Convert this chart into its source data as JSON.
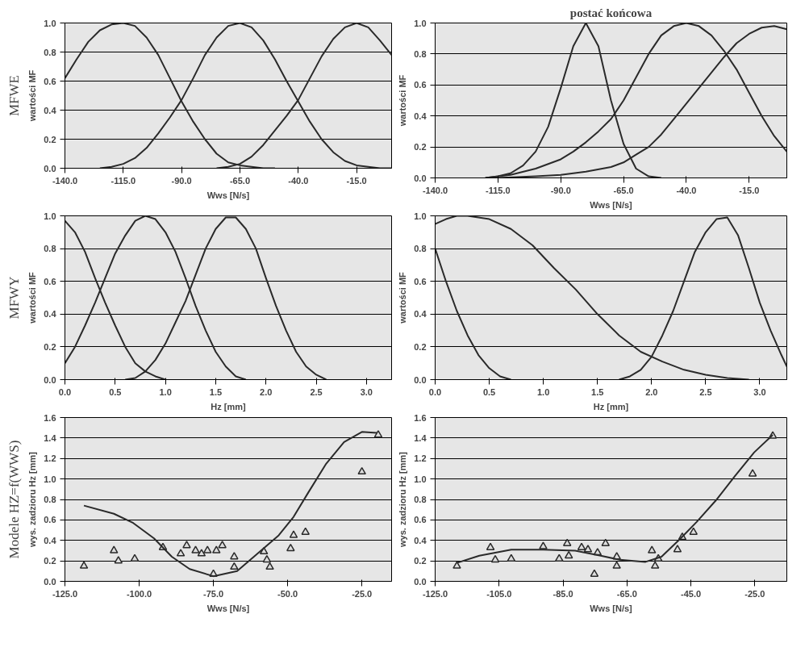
{
  "chart_data": [
    {
      "type": "line",
      "annotations": [
        "MFWE"
      ],
      "xlabel": "Wws [N/s]",
      "ylabel": "wartości MF",
      "grid": "y",
      "marker": "none",
      "line_style": "solid",
      "xlim": [
        -140,
        0
      ],
      "xticks": [
        {
          "value": -140,
          "label": "-140.0"
        },
        {
          "value": -115,
          "label": "-115.0"
        },
        {
          "value": -90,
          "label": "-90.0"
        },
        {
          "value": -65,
          "label": "-65.0"
        },
        {
          "value": -40,
          "label": "-40.0"
        },
        {
          "value": -15,
          "label": "-15.0"
        }
      ],
      "ylim": [
        0,
        1
      ],
      "yticks": [
        {
          "value": 0,
          "label": "0.0"
        },
        {
          "value": 0.2,
          "label": "0.2"
        },
        {
          "value": 0.4,
          "label": "0.4"
        },
        {
          "value": 0.6,
          "label": "0.6"
        },
        {
          "value": 0.8,
          "label": "0.8"
        },
        {
          "value": 1,
          "label": "1.0"
        }
      ],
      "series": [
        {
          "color": "#2a2a2a",
          "x": [
            -140,
            -135,
            -130,
            -125,
            -120,
            -115,
            -110,
            -105,
            -100,
            -95,
            -90,
            -85,
            -80,
            -75,
            -70,
            -65,
            -60,
            -55,
            -50
          ],
          "values": [
            0.62,
            0.75,
            0.87,
            0.95,
            0.99,
            1.0,
            0.98,
            0.9,
            0.78,
            0.62,
            0.46,
            0.32,
            0.2,
            0.1,
            0.04,
            0.02,
            0.01,
            0.0,
            0.0
          ]
        },
        {
          "color": "#2a2a2a",
          "x": [
            -125,
            -120,
            -115,
            -110,
            -105,
            -100,
            -95,
            -90,
            -85,
            -80,
            -75,
            -70,
            -65,
            -60,
            -55,
            -50,
            -45,
            -40,
            -35,
            -30,
            -25,
            -20,
            -15,
            -10,
            -5,
            0
          ],
          "values": [
            0.0,
            0.01,
            0.03,
            0.07,
            0.14,
            0.24,
            0.35,
            0.47,
            0.62,
            0.78,
            0.9,
            0.98,
            1.0,
            0.97,
            0.88,
            0.75,
            0.6,
            0.46,
            0.32,
            0.2,
            0.11,
            0.05,
            0.02,
            0.01,
            0.0,
            0.0
          ]
        },
        {
          "color": "#2a2a2a",
          "x": [
            -75,
            -70,
            -65,
            -60,
            -55,
            -50,
            -45,
            -40,
            -35,
            -30,
            -25,
            -20,
            -15,
            -10,
            -5,
            0
          ],
          "values": [
            0.0,
            0.01,
            0.03,
            0.08,
            0.16,
            0.26,
            0.36,
            0.47,
            0.62,
            0.77,
            0.89,
            0.97,
            1.0,
            0.97,
            0.88,
            0.78
          ]
        }
      ]
    },
    {
      "type": "line",
      "title": "postać końcowa",
      "xlabel": "Wws [N/s]",
      "ylabel": "wartości MF",
      "grid": "y",
      "marker": "none",
      "line_style": "solid",
      "xlim": [
        -140,
        0
      ],
      "xticks": [
        {
          "value": -140,
          "label": "-140.0"
        },
        {
          "value": -115,
          "label": "-115.0"
        },
        {
          "value": -90,
          "label": "-90.0"
        },
        {
          "value": -65,
          "label": "-65.0"
        },
        {
          "value": -40,
          "label": "-40.0"
        },
        {
          "value": -15,
          "label": "-15.0"
        }
      ],
      "ylim": [
        0,
        1
      ],
      "yticks": [
        {
          "value": 0,
          "label": "0.0"
        },
        {
          "value": 0.2,
          "label": "0.2"
        },
        {
          "value": 0.4,
          "label": "0.4"
        },
        {
          "value": 0.6,
          "label": "0.6"
        },
        {
          "value": 0.8,
          "label": "0.8"
        },
        {
          "value": 1,
          "label": "1.0"
        }
      ],
      "series": [
        {
          "color": "#2a2a2a",
          "x": [
            -120,
            -115,
            -110,
            -105,
            -100,
            -95,
            -90,
            -85,
            -80,
            -75,
            -70,
            -65,
            -60,
            -55,
            -50
          ],
          "values": [
            0.0,
            0.01,
            0.03,
            0.08,
            0.17,
            0.33,
            0.58,
            0.85,
            1.0,
            0.85,
            0.5,
            0.22,
            0.06,
            0.01,
            0.0
          ]
        },
        {
          "color": "#2a2a2a",
          "x": [
            -120,
            -110,
            -100,
            -90,
            -85,
            -80,
            -75,
            -70,
            -65,
            -60,
            -55,
            -50,
            -45,
            -40,
            -35,
            -30,
            -25,
            -20,
            -15,
            -10,
            -5,
            0
          ],
          "values": [
            0.0,
            0.02,
            0.06,
            0.12,
            0.17,
            0.23,
            0.3,
            0.38,
            0.5,
            0.65,
            0.8,
            0.92,
            0.98,
            1.0,
            0.98,
            0.92,
            0.82,
            0.7,
            0.55,
            0.4,
            0.27,
            0.17
          ]
        },
        {
          "color": "#2a2a2a",
          "x": [
            -115,
            -100,
            -90,
            -80,
            -70,
            -65,
            -60,
            -55,
            -50,
            -45,
            -40,
            -35,
            -30,
            -25,
            -20,
            -15,
            -10,
            -5,
            0
          ],
          "values": [
            0.0,
            0.01,
            0.02,
            0.04,
            0.07,
            0.1,
            0.15,
            0.2,
            0.28,
            0.38,
            0.48,
            0.58,
            0.68,
            0.78,
            0.87,
            0.93,
            0.97,
            0.98,
            0.96
          ]
        }
      ]
    },
    {
      "type": "line",
      "annotations": [
        "MFWY"
      ],
      "xlabel": "Hz [mm]",
      "ylabel": "wartości MF",
      "grid": "y",
      "marker": "none",
      "line_style": "solid",
      "xlim": [
        0,
        3.25
      ],
      "xticks": [
        {
          "value": 0,
          "label": "0.0"
        },
        {
          "value": 0.5,
          "label": "0.5"
        },
        {
          "value": 1,
          "label": "1.0"
        },
        {
          "value": 1.5,
          "label": "1.5"
        },
        {
          "value": 2,
          "label": "2.0"
        },
        {
          "value": 2.5,
          "label": "2.5"
        },
        {
          "value": 3,
          "label": "3.0"
        }
      ],
      "ylim": [
        0,
        1
      ],
      "yticks": [
        {
          "value": 0,
          "label": "0.0"
        },
        {
          "value": 0.2,
          "label": "0.2"
        },
        {
          "value": 0.4,
          "label": "0.4"
        },
        {
          "value": 0.6,
          "label": "0.6"
        },
        {
          "value": 0.8,
          "label": "0.8"
        },
        {
          "value": 1,
          "label": "1.0"
        }
      ],
      "series": [
        {
          "color": "#2a2a2a",
          "x": [
            0,
            0.1,
            0.2,
            0.3,
            0.4,
            0.5,
            0.6,
            0.7,
            0.8,
            0.9,
            1.0
          ],
          "values": [
            0.97,
            0.9,
            0.78,
            0.62,
            0.47,
            0.33,
            0.2,
            0.1,
            0.05,
            0.02,
            0.0
          ]
        },
        {
          "color": "#2a2a2a",
          "x": [
            0,
            0.1,
            0.2,
            0.3,
            0.4,
            0.5,
            0.6,
            0.7,
            0.8,
            0.9,
            1.0,
            1.1,
            1.2,
            1.3,
            1.4,
            1.5,
            1.6,
            1.7,
            1.8
          ],
          "values": [
            0.1,
            0.2,
            0.33,
            0.47,
            0.62,
            0.77,
            0.88,
            0.97,
            1.0,
            0.98,
            0.9,
            0.78,
            0.62,
            0.45,
            0.3,
            0.17,
            0.08,
            0.02,
            0.0
          ]
        },
        {
          "color": "#2a2a2a",
          "x": [
            0.6,
            0.7,
            0.8,
            0.9,
            1.0,
            1.1,
            1.2,
            1.3,
            1.4,
            1.5,
            1.6,
            1.7,
            1.8,
            1.9,
            2.0,
            2.1,
            2.2,
            2.3,
            2.4,
            2.5,
            2.6
          ],
          "values": [
            0.0,
            0.01,
            0.05,
            0.12,
            0.22,
            0.35,
            0.48,
            0.64,
            0.8,
            0.92,
            0.99,
            0.99,
            0.92,
            0.8,
            0.62,
            0.45,
            0.3,
            0.17,
            0.08,
            0.03,
            0.0
          ]
        }
      ]
    },
    {
      "type": "line",
      "xlabel": "Hz [mm]",
      "ylabel": "wartości MF",
      "grid": "y",
      "marker": "none",
      "line_style": "solid",
      "xlim": [
        0,
        3.25
      ],
      "xticks": [
        {
          "value": 0,
          "label": "0.0"
        },
        {
          "value": 0.5,
          "label": "0.5"
        },
        {
          "value": 1,
          "label": "1.0"
        },
        {
          "value": 1.5,
          "label": "1.5"
        },
        {
          "value": 2,
          "label": "2.0"
        },
        {
          "value": 2.5,
          "label": "2.5"
        },
        {
          "value": 3,
          "label": "3.0"
        }
      ],
      "ylim": [
        0,
        1
      ],
      "yticks": [
        {
          "value": 0,
          "label": "0.0"
        },
        {
          "value": 0.2,
          "label": "0.2"
        },
        {
          "value": 0.4,
          "label": "0.4"
        },
        {
          "value": 0.6,
          "label": "0.6"
        },
        {
          "value": 0.8,
          "label": "0.8"
        },
        {
          "value": 1,
          "label": "1.0"
        }
      ],
      "series": [
        {
          "color": "#2a2a2a",
          "x": [
            0,
            0.1,
            0.2,
            0.3,
            0.4,
            0.5,
            0.6,
            0.7
          ],
          "values": [
            0.8,
            0.6,
            0.42,
            0.27,
            0.15,
            0.07,
            0.02,
            0.0
          ]
        },
        {
          "color": "#2a2a2a",
          "x": [
            0,
            0.1,
            0.2,
            0.3,
            0.5,
            0.7,
            0.9,
            1.1,
            1.3,
            1.5,
            1.7,
            1.9,
            2.1,
            2.3,
            2.5,
            2.7,
            2.9
          ],
          "values": [
            0.95,
            0.98,
            1.0,
            1.0,
            0.98,
            0.92,
            0.82,
            0.68,
            0.55,
            0.4,
            0.27,
            0.17,
            0.11,
            0.06,
            0.03,
            0.01,
            0.0
          ]
        },
        {
          "color": "#2a2a2a",
          "x": [
            1.7,
            1.8,
            1.9,
            2.0,
            2.1,
            2.2,
            2.3,
            2.4,
            2.5,
            2.6,
            2.7,
            2.8,
            2.9,
            3.0,
            3.1,
            3.2,
            3.25
          ],
          "values": [
            0.0,
            0.02,
            0.06,
            0.14,
            0.27,
            0.42,
            0.6,
            0.78,
            0.9,
            0.98,
            0.99,
            0.88,
            0.68,
            0.47,
            0.3,
            0.15,
            0.08
          ]
        }
      ]
    },
    {
      "type": "line",
      "annotations": [
        "Modele HZ=f(WWS)"
      ],
      "xlabel": "Wws [N/s]",
      "ylabel": "wys. zadzioru Hz [mm]",
      "grid": "y",
      "line_style": "solid",
      "xlim": [
        -125,
        -15
      ],
      "xticks": [
        {
          "value": -125,
          "label": "-125.0"
        },
        {
          "value": -100,
          "label": "-100.0"
        },
        {
          "value": -75,
          "label": "-75.0"
        },
        {
          "value": -50,
          "label": "-50.0"
        },
        {
          "value": -25,
          "label": "-25.0"
        }
      ],
      "ylim": [
        0,
        1.6
      ],
      "yticks": [
        {
          "value": 0,
          "label": "0.0"
        },
        {
          "value": 0.2,
          "label": "0.2"
        },
        {
          "value": 0.4,
          "label": "0.4"
        },
        {
          "value": 0.6,
          "label": "0.6"
        },
        {
          "value": 0.8,
          "label": "0.8"
        },
        {
          "value": 1,
          "label": "1.0"
        },
        {
          "value": 1.2,
          "label": "1.2"
        },
        {
          "value": 1.4,
          "label": "1.4"
        },
        {
          "value": 1.6,
          "label": "1.6"
        }
      ],
      "series": [
        {
          "type": "scatter",
          "marker": "triangle",
          "color": "#2a2a2a",
          "x": [
            -118.6,
            -108.5,
            -107,
            -101.5,
            -92,
            -86,
            -84,
            -81,
            -79,
            -77,
            -75,
            -74,
            -72,
            -68,
            -68,
            -58,
            -57,
            -56,
            -49,
            -48,
            -44,
            -25,
            -19.5
          ],
          "values": [
            0.15,
            0.3,
            0.2,
            0.22,
            0.33,
            0.27,
            0.35,
            0.3,
            0.27,
            0.3,
            0.07,
            0.3,
            0.35,
            0.24,
            0.14,
            0.29,
            0.21,
            0.14,
            0.32,
            0.45,
            0.48,
            1.07,
            1.43
          ]
        },
        {
          "type": "line",
          "marker": "none",
          "color": "#2a2a2a",
          "x": [
            -118.6,
            -108.5,
            -102,
            -95,
            -89,
            -83,
            -75,
            -67,
            -59,
            -53,
            -48,
            -43,
            -37,
            -31,
            -25,
            -20
          ],
          "values": [
            0.74,
            0.66,
            0.57,
            0.42,
            0.24,
            0.12,
            0.05,
            0.1,
            0.3,
            0.45,
            0.63,
            0.87,
            1.15,
            1.36,
            1.46,
            1.45
          ]
        }
      ]
    },
    {
      "type": "line",
      "xlabel": "Wws [N/s]",
      "ylabel": "wys. zadzioru Hz [mm]",
      "grid": "y",
      "line_style": "solid",
      "xlim": [
        -125,
        -15
      ],
      "xticks": [
        {
          "value": -125,
          "label": "-125.0"
        },
        {
          "value": -105,
          "label": "-105.0"
        },
        {
          "value": -85,
          "label": "-85.0"
        },
        {
          "value": -65,
          "label": "-65.0"
        },
        {
          "value": -45,
          "label": "-45.0"
        },
        {
          "value": -25,
          "label": "-25.0"
        }
      ],
      "ylim": [
        0,
        1.6
      ],
      "yticks": [
        {
          "value": 0,
          "label": "0.0"
        },
        {
          "value": 0.2,
          "label": "0.2"
        },
        {
          "value": 0.4,
          "label": "0.4"
        },
        {
          "value": 0.6,
          "label": "0.6"
        },
        {
          "value": 0.8,
          "label": "0.8"
        },
        {
          "value": 1,
          "label": "1.0"
        },
        {
          "value": 1.2,
          "label": "1.2"
        },
        {
          "value": 1.4,
          "label": "1.4"
        },
        {
          "value": 1.6,
          "label": "1.6"
        }
      ],
      "series": [
        {
          "type": "scatter",
          "marker": "triangle",
          "color": "#2a2a2a",
          "x": [
            -118.2,
            -107.7,
            -106.2,
            -101.2,
            -91.2,
            -86.2,
            -83.7,
            -83.2,
            -79.2,
            -77.2,
            -75.2,
            -74.2,
            -71.7,
            -68.2,
            -68.2,
            -57.2,
            -56.2,
            -55.2,
            -49.2,
            -47.7,
            -44.2,
            -25.7,
            -19.4
          ],
          "values": [
            0.15,
            0.33,
            0.21,
            0.22,
            0.34,
            0.22,
            0.37,
            0.25,
            0.33,
            0.31,
            0.07,
            0.28,
            0.37,
            0.24,
            0.15,
            0.3,
            0.15,
            0.22,
            0.31,
            0.43,
            0.48,
            1.05,
            1.42
          ]
        },
        {
          "type": "line",
          "marker": "none",
          "color": "#2a2a2a",
          "x": [
            -118.2,
            -111.2,
            -101.2,
            -91.2,
            -81.2,
            -73.2,
            -67.2,
            -59.2,
            -54.2,
            -48.2,
            -43.2,
            -37.2,
            -31.2,
            -25.2,
            -19.4
          ],
          "values": [
            0.18,
            0.25,
            0.31,
            0.31,
            0.3,
            0.25,
            0.21,
            0.19,
            0.24,
            0.42,
            0.58,
            0.79,
            1.03,
            1.26,
            1.43
          ]
        }
      ]
    }
  ]
}
